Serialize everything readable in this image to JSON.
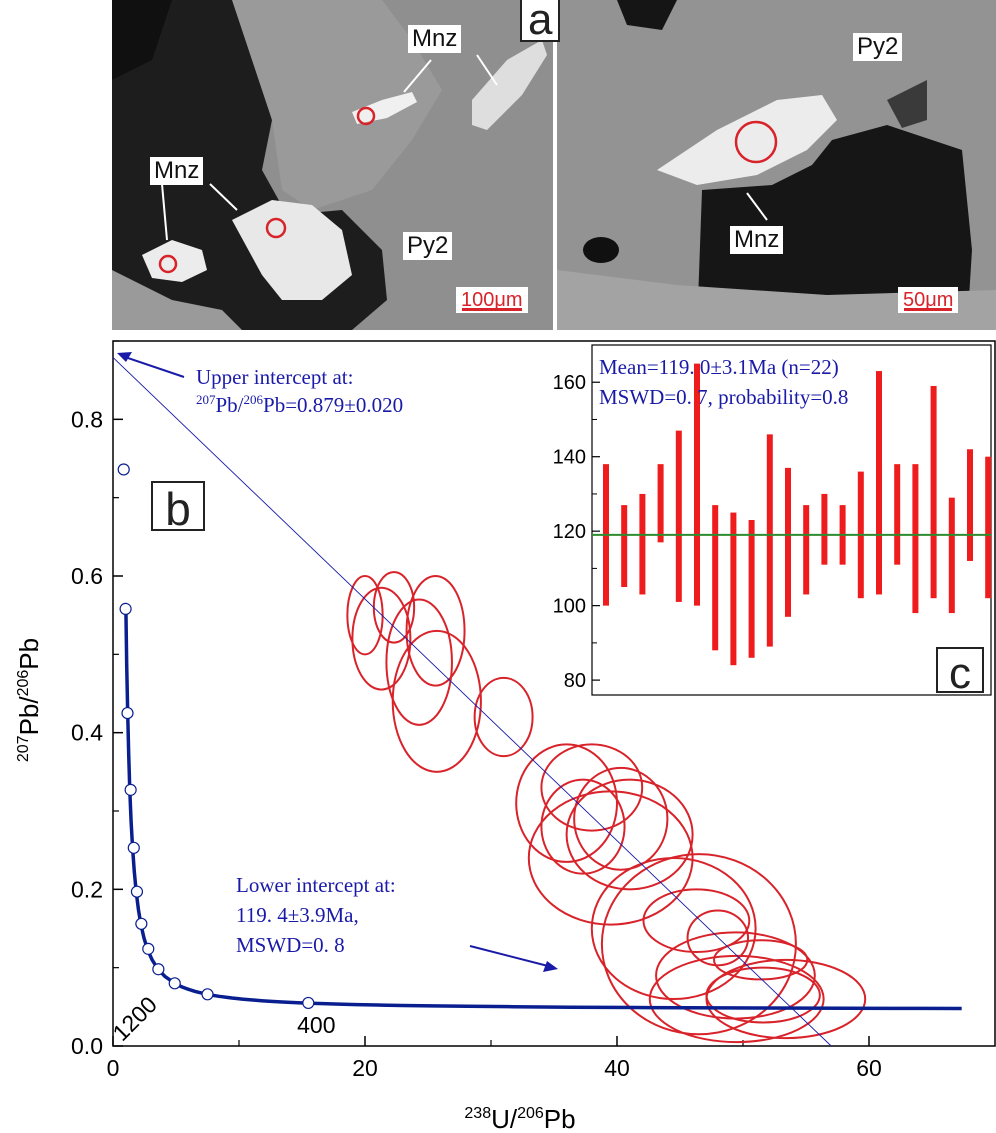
{
  "panel_a": {
    "letter": "a",
    "left": {
      "labels": [
        "Mnz",
        "Mnz",
        "Py2"
      ],
      "scale": "100μm"
    },
    "right": {
      "labels": [
        "Py2",
        "Mnz"
      ],
      "scale": "50μm"
    }
  },
  "colors": {
    "concordia": "#0a1f8f",
    "ellipse": "#d8232a",
    "annotation": "#1a1aa8",
    "mean_line": "#2e8b2e",
    "bar": "#ee1c1c"
  },
  "chart_data": [
    {
      "type": "scatter",
      "panel": "b",
      "xlabel_sup": "238",
      "xlabel_main": "U/",
      "xlabel_sup2": "206",
      "xlabel_end": "Pb",
      "ylabel_sup": "207",
      "ylabel_main": "Pb/",
      "ylabel_sup2": "206",
      "ylabel_end": "Pb",
      "xlim": [
        0,
        70
      ],
      "ylim": [
        0,
        0.9
      ],
      "x_ticks": [
        "0",
        "20",
        "40",
        "60"
      ],
      "x_tick_values": [
        0,
        20,
        40,
        60
      ],
      "y_ticks": [
        "0.0",
        "0.2",
        "0.4",
        "0.6",
        "0.8"
      ],
      "y_tick_values": [
        0,
        0.2,
        0.4,
        0.6,
        0.8
      ],
      "concordia_points": [
        {
          "x": 15.5,
          "y": 0.055
        },
        {
          "x": 7.5,
          "y": 0.066
        },
        {
          "x": 4.9,
          "y": 0.08
        },
        {
          "x": 3.6,
          "y": 0.098
        },
        {
          "x": 2.8,
          "y": 0.124
        },
        {
          "x": 2.25,
          "y": 0.156
        },
        {
          "x": 1.9,
          "y": 0.197
        },
        {
          "x": 1.65,
          "y": 0.253
        },
        {
          "x": 1.4,
          "y": 0.327
        },
        {
          "x": 1.15,
          "y": 0.425
        },
        {
          "x": 1.0,
          "y": 0.558
        },
        {
          "x": 0.85,
          "y": 0.736
        }
      ],
      "concordia_labels": [
        {
          "text": "400",
          "x": 15.5,
          "y": 0.055
        },
        {
          "text": "1200",
          "x": 3.6,
          "y": 0.098
        }
      ],
      "discordia": {
        "x1": 0,
        "y1": 0.879,
        "x2": 57,
        "y2": 0.0
      },
      "ellipses": [
        {
          "x": 20.0,
          "y": 0.55,
          "sx": 1.4,
          "sy": 0.05
        },
        {
          "x": 21.3,
          "y": 0.52,
          "sx": 2.3,
          "sy": 0.065
        },
        {
          "x": 22.3,
          "y": 0.56,
          "sx": 1.6,
          "sy": 0.045
        },
        {
          "x": 25.6,
          "y": 0.53,
          "sx": 2.3,
          "sy": 0.07
        },
        {
          "x": 24.3,
          "y": 0.49,
          "sx": 2.6,
          "sy": 0.08
        },
        {
          "x": 25.7,
          "y": 0.44,
          "sx": 3.5,
          "sy": 0.09
        },
        {
          "x": 31.0,
          "y": 0.42,
          "sx": 2.3,
          "sy": 0.05
        },
        {
          "x": 36.0,
          "y": 0.31,
          "sx": 4.0,
          "sy": 0.075
        },
        {
          "x": 37.3,
          "y": 0.28,
          "sx": 3.3,
          "sy": 0.06
        },
        {
          "x": 38.0,
          "y": 0.33,
          "sx": 4.0,
          "sy": 0.055
        },
        {
          "x": 39.5,
          "y": 0.24,
          "sx": 6.5,
          "sy": 0.085
        },
        {
          "x": 40.3,
          "y": 0.29,
          "sx": 3.7,
          "sy": 0.065
        },
        {
          "x": 41.0,
          "y": 0.27,
          "sx": 5.0,
          "sy": 0.07
        },
        {
          "x": 44.5,
          "y": 0.15,
          "sx": 6.5,
          "sy": 0.09
        },
        {
          "x": 46.5,
          "y": 0.13,
          "sx": 7.7,
          "sy": 0.115
        },
        {
          "x": 46.3,
          "y": 0.16,
          "sx": 4.2,
          "sy": 0.04
        },
        {
          "x": 48.0,
          "y": 0.138,
          "sx": 2.4,
          "sy": 0.035
        },
        {
          "x": 49.4,
          "y": 0.09,
          "sx": 6.3,
          "sy": 0.055
        },
        {
          "x": 49.5,
          "y": 0.06,
          "sx": 6.9,
          "sy": 0.055
        },
        {
          "x": 51.4,
          "y": 0.11,
          "sx": 3.7,
          "sy": 0.025
        },
        {
          "x": 51.6,
          "y": 0.065,
          "sx": 4.5,
          "sy": 0.035
        },
        {
          "x": 53.4,
          "y": 0.06,
          "sx": 6.3,
          "sy": 0.05
        }
      ],
      "annotations": {
        "upper_line1": "Upper intercept at:",
        "upper_sup1": "207",
        "upper_mid": "Pb/",
        "upper_sup2": "206",
        "upper_end": "Pb=0.879±0.020",
        "lower_line1": "Lower intercept at:",
        "lower_line2": "119. 4±3.9Ma,",
        "lower_line3": "MSWD=0. 8"
      }
    },
    {
      "type": "bar",
      "panel": "c",
      "title_line1": "Mean=119. 0±3.1Ma (n=22)",
      "title_line2": "MSWD=0. 7, probability=0.8",
      "ylim": [
        76,
        170
      ],
      "y_ticks": [
        "80",
        "100",
        "120",
        "140",
        "160"
      ],
      "y_tick_values": [
        80,
        100,
        120,
        140,
        160
      ],
      "mean": 119,
      "ranges": [
        [
          100,
          138
        ],
        [
          105,
          127
        ],
        [
          103,
          130
        ],
        [
          117,
          138
        ],
        [
          101,
          147
        ],
        [
          100,
          165
        ],
        [
          88,
          127
        ],
        [
          84,
          125
        ],
        [
          86,
          123
        ],
        [
          89,
          146
        ],
        [
          97,
          137
        ],
        [
          103,
          127
        ],
        [
          111,
          130
        ],
        [
          111,
          127
        ],
        [
          102,
          136
        ],
        [
          103,
          163
        ],
        [
          111,
          138
        ],
        [
          98,
          138
        ],
        [
          102,
          159
        ],
        [
          98,
          129
        ],
        [
          112,
          142
        ],
        [
          102,
          140
        ]
      ]
    }
  ]
}
